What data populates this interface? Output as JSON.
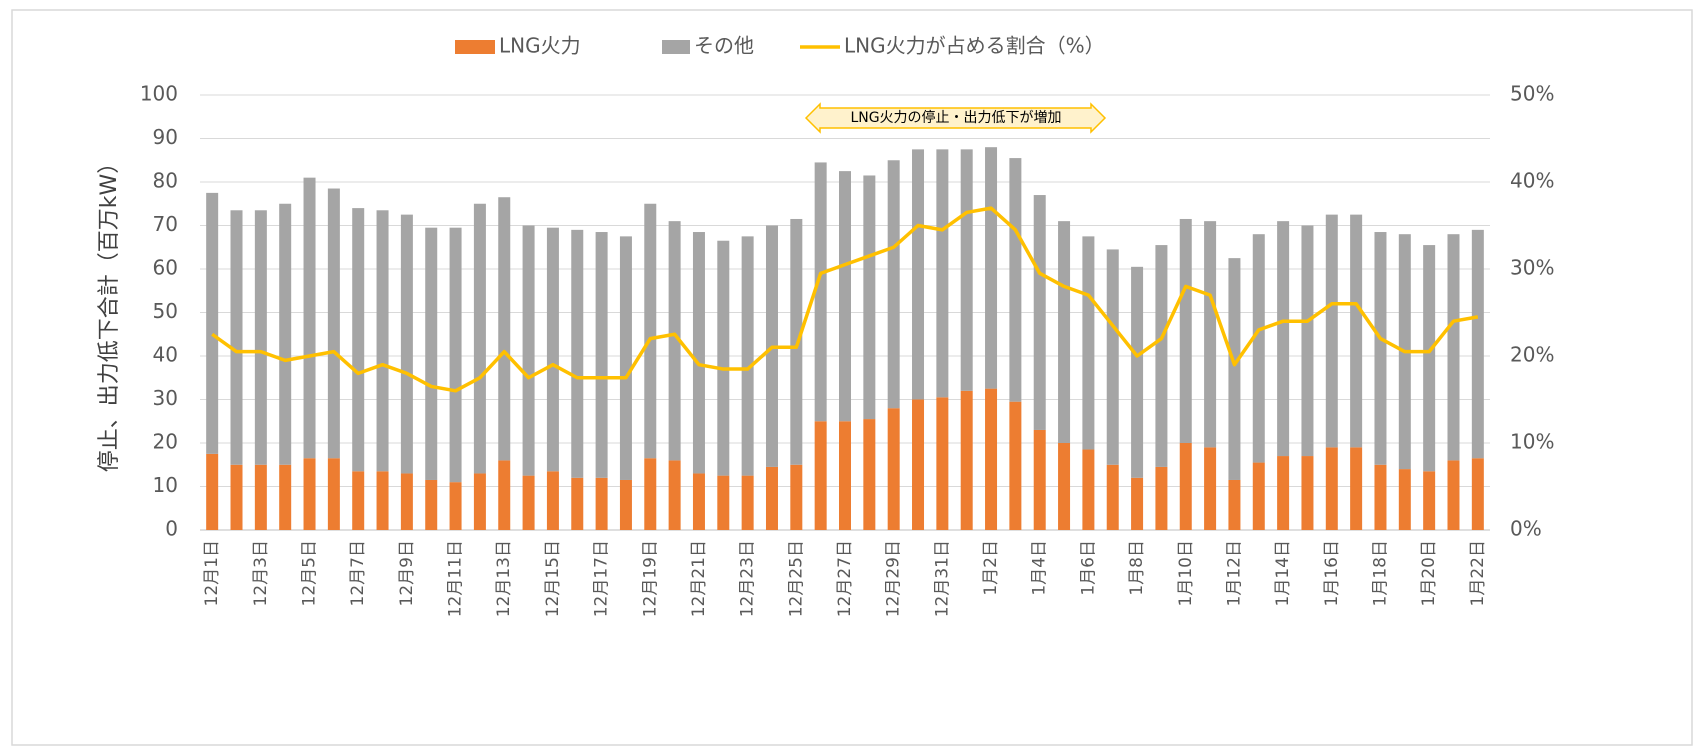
{
  "chart_data": {
    "type": "bar",
    "stacked": true,
    "y_label": "停止、出力低下合計（百万kW）",
    "annotation": "LNG火力の停止・出力低下が増加",
    "categories": [
      "12月1日",
      null,
      "12月3日",
      null,
      "12月5日",
      null,
      "12月7日",
      null,
      "12月9日",
      null,
      "12月11日",
      null,
      "12月13日",
      null,
      "12月15日",
      null,
      "12月17日",
      null,
      "12月19日",
      null,
      "12月21日",
      null,
      "12月23日",
      null,
      "12月25日",
      null,
      "12月27日",
      null,
      "12月29日",
      null,
      "12月31日",
      null,
      "1月2日",
      null,
      "1月4日",
      null,
      "1月6日",
      null,
      "1月8日",
      null,
      "1月10日",
      null,
      "1月12日",
      null,
      "1月14日",
      null,
      "1月16日",
      null,
      "1月18日",
      null,
      "1月20日",
      null,
      "1月22日"
    ],
    "series": [
      {
        "name": "LNG火力",
        "color": "#ed7d31",
        "values": [
          17.5,
          15,
          15,
          15,
          16.5,
          16.5,
          13.5,
          13.5,
          13,
          11.5,
          11,
          13,
          16,
          12.5,
          13.5,
          12,
          12,
          11.5,
          16.5,
          16,
          13,
          12.5,
          12.5,
          14.5,
          15,
          25,
          25,
          25.5,
          28,
          30,
          30.5,
          32,
          32.5,
          29.5,
          23,
          20,
          18.5,
          15,
          12,
          14.5,
          20,
          19,
          11.5,
          15.5,
          17,
          17,
          19,
          19,
          15,
          14,
          13.5,
          16,
          16.5
        ]
      },
      {
        "name": "その他",
        "color": "#a5a5a5",
        "values": [
          60,
          58.5,
          58.5,
          60,
          64.5,
          62,
          60.5,
          60,
          59.5,
          58,
          58.5,
          62,
          60.5,
          57.5,
          56,
          57,
          56.5,
          56,
          58.5,
          55,
          55.5,
          54,
          55,
          55.5,
          56.5,
          59.5,
          57.5,
          56,
          57,
          57.5,
          57,
          55.5,
          55.5,
          56,
          54,
          51,
          49,
          49.5,
          48.5,
          51,
          51.5,
          52,
          51,
          52.5,
          54,
          53,
          53.5,
          53.5,
          53.5,
          54,
          52,
          52,
          52.5
        ]
      },
      {
        "name": "LNG火力が占める割合（%）",
        "color": "#ffc000",
        "axis": "y2",
        "values": [
          22.5,
          20.5,
          20.5,
          19.5,
          20,
          20.5,
          18,
          19,
          18,
          16.5,
          16,
          17.5,
          20.5,
          17.5,
          19,
          17.5,
          17.5,
          17.5,
          22,
          22.5,
          19,
          18.5,
          18.5,
          21,
          21,
          29.5,
          30.5,
          31.5,
          32.5,
          35,
          34.5,
          36.5,
          37,
          34.5,
          29.5,
          28,
          27,
          23.5,
          20,
          22,
          28,
          27,
          19,
          23,
          24,
          24,
          26,
          26,
          22,
          20.5,
          20.5,
          24,
          24.5
        ]
      }
    ],
    "ylim": [
      0,
      100
    ],
    "yticks": [
      0,
      10,
      20,
      30,
      40,
      50,
      60,
      70,
      80,
      90,
      100
    ],
    "y2lim": [
      0,
      50
    ],
    "y2ticks": [
      {
        "value": 0,
        "label": "0%"
      },
      {
        "value": 10,
        "label": "10%"
      },
      {
        "value": 20,
        "label": "20%"
      },
      {
        "value": 30,
        "label": "30%"
      },
      {
        "value": 40,
        "label": "40%"
      },
      {
        "value": 50,
        "label": "50%"
      }
    ],
    "grid": true,
    "legend": "top"
  }
}
